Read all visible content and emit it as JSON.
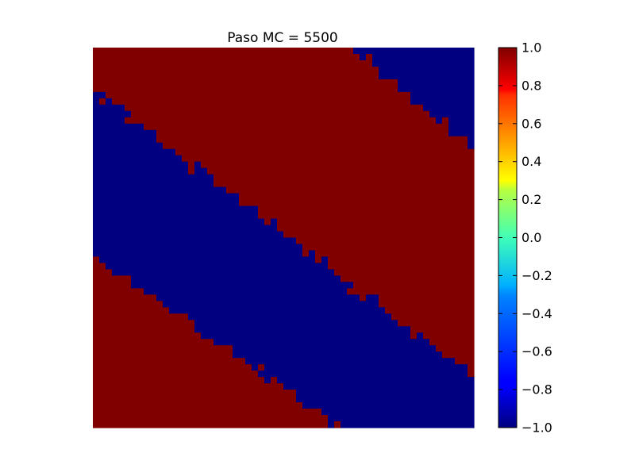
{
  "chart_data": {
    "type": "heatmap",
    "title": "Paso MC = 5500",
    "xlabel": "",
    "ylabel": "",
    "axes_visible": false,
    "grid": false,
    "colormap": "jet",
    "vmin": -1.0,
    "vmax": 1.0,
    "lattice_size": [
      60,
      60
    ],
    "values": [
      1,
      -1
    ],
    "region_boundaries": {
      "description_units": "fraction of lattice width",
      "boundary_a": {
        "x_top": 0.5,
        "y_left": 0.11,
        "value_above": 1,
        "value_below": -1
      },
      "boundary_b": {
        "x_top": 0.99,
        "y_left": 0.54,
        "value_above": -1,
        "value_below": 1
      },
      "boundary_c": {
        "x_top": 0.49,
        "y_left": 0.05,
        "wraps": true,
        "value_above": 1,
        "value_below": -1
      }
    },
    "colorbar": {
      "ticks": [
        "1.0",
        "0.8",
        "0.6",
        "0.4",
        "0.2",
        "0.0",
        "−0.2",
        "−0.4",
        "−0.6",
        "−0.8",
        "−1.0"
      ],
      "tick_values": [
        1.0,
        0.8,
        0.6,
        0.4,
        0.2,
        0.0,
        -0.2,
        -0.4,
        -0.6,
        -0.8,
        -1.0
      ]
    },
    "colors": {
      "spin_up": "#800000",
      "spin_down": "#000080"
    }
  }
}
